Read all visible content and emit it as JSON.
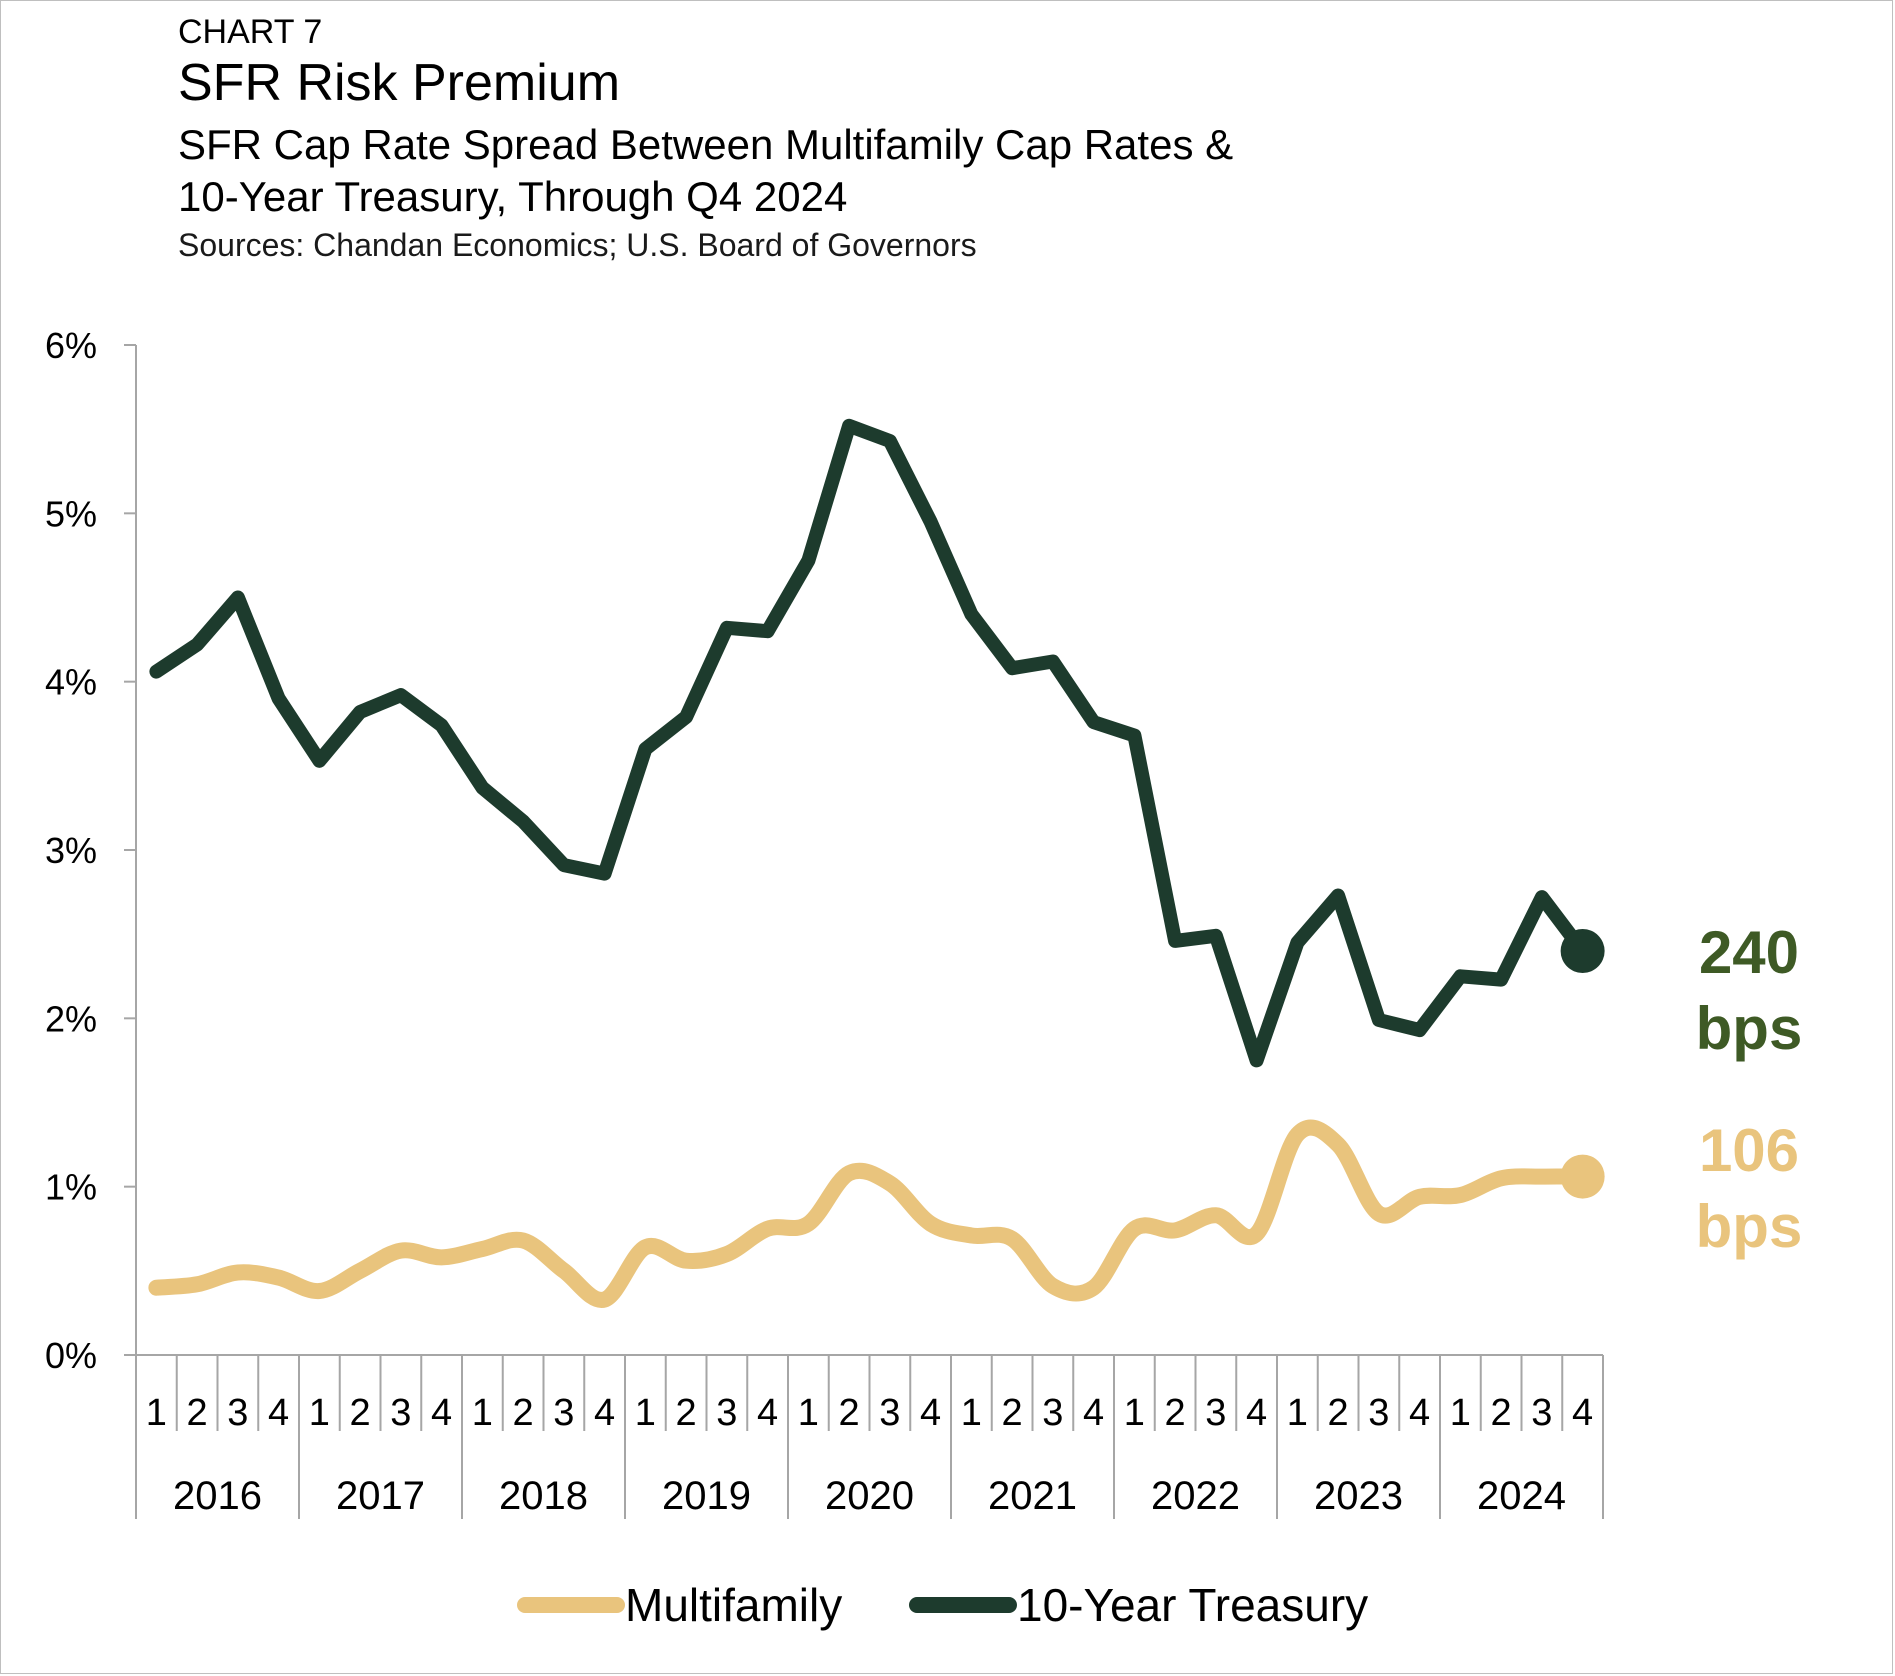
{
  "header": {
    "chart_label": "CHART 7",
    "title": "SFR Risk Premium",
    "subtitle_line1": "SFR Cap Rate Spread Between Multifamily Cap Rates &",
    "subtitle_line2": "10-Year Treasury, Through Q4 2024",
    "source": "Sources: Chandan Economics; U.S. Board of Governors"
  },
  "colors": {
    "multifamily": "#E9C47D",
    "treasury": "#1D3B2D",
    "treasury_callout": "#3E5A25",
    "multifamily_callout": "#E9C47D",
    "axis": "#a6a6a6"
  },
  "chart_data": {
    "type": "line",
    "xlabel": "",
    "ylabel": "",
    "ylim": [
      0,
      6
    ],
    "yticks": [
      "0%",
      "1%",
      "2%",
      "3%",
      "4%",
      "5%",
      "6%"
    ],
    "years": [
      "2016",
      "2017",
      "2018",
      "2019",
      "2020",
      "2021",
      "2022",
      "2023",
      "2024"
    ],
    "quarter_labels": [
      "1",
      "2",
      "3",
      "4"
    ],
    "categories": [
      "2016 Q1",
      "2016 Q2",
      "2016 Q3",
      "2016 Q4",
      "2017 Q1",
      "2017 Q2",
      "2017 Q3",
      "2017 Q4",
      "2018 Q1",
      "2018 Q2",
      "2018 Q3",
      "2018 Q4",
      "2019 Q1",
      "2019 Q2",
      "2019 Q3",
      "2019 Q4",
      "2020 Q1",
      "2020 Q2",
      "2020 Q3",
      "2020 Q4",
      "2021 Q1",
      "2021 Q2",
      "2021 Q3",
      "2021 Q4",
      "2022 Q1",
      "2022 Q2",
      "2022 Q3",
      "2022 Q4",
      "2023 Q1",
      "2023 Q2",
      "2023 Q3",
      "2023 Q4",
      "2024 Q1",
      "2024 Q2",
      "2024 Q3",
      "2024 Q4"
    ],
    "series": [
      {
        "name": "Multifamily",
        "values": [
          0.4,
          0.42,
          0.49,
          0.46,
          0.38,
          0.5,
          0.62,
          0.58,
          0.63,
          0.68,
          0.5,
          0.33,
          0.64,
          0.56,
          0.6,
          0.75,
          0.78,
          1.08,
          1.02,
          0.78,
          0.71,
          0.69,
          0.41,
          0.4,
          0.75,
          0.74,
          0.83,
          0.72,
          1.31,
          1.25,
          0.84,
          0.94,
          0.95,
          1.05,
          1.06,
          1.06
        ]
      },
      {
        "name": "10-Year Treasury",
        "values": [
          4.06,
          4.22,
          4.5,
          3.9,
          3.53,
          3.82,
          3.92,
          3.74,
          3.37,
          3.17,
          2.91,
          2.86,
          3.6,
          3.79,
          4.32,
          4.3,
          4.72,
          5.52,
          5.43,
          4.95,
          4.4,
          4.08,
          4.12,
          3.76,
          3.68,
          2.46,
          2.49,
          1.75,
          2.45,
          2.73,
          1.99,
          1.93,
          2.25,
          2.23,
          2.72,
          2.4
        ]
      }
    ],
    "end_callouts": [
      {
        "series": "10-Year Treasury",
        "value_text": "240",
        "unit_text": "bps"
      },
      {
        "series": "Multifamily",
        "value_text": "106",
        "unit_text": "bps"
      }
    ],
    "legend_position": "bottom-center",
    "grid": false
  }
}
